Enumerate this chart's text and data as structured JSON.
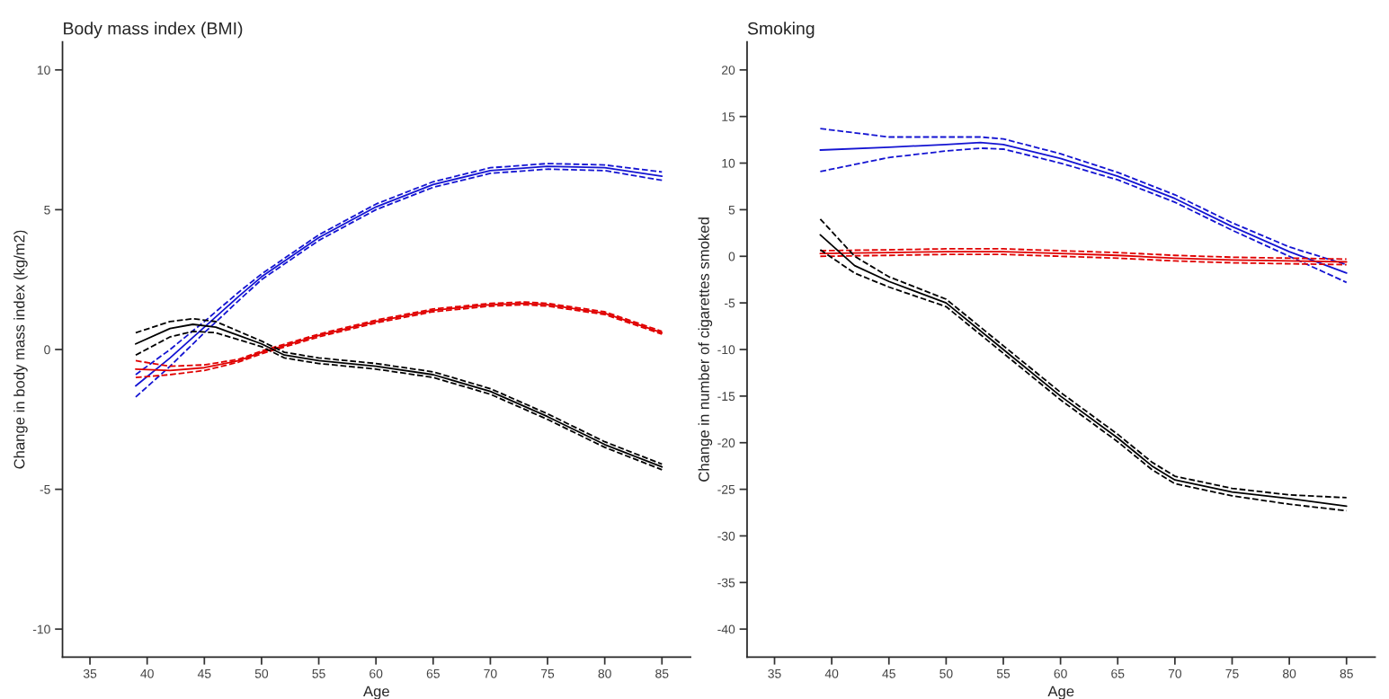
{
  "chart_data": [
    {
      "type": "line",
      "title": "Body mass index (BMI)",
      "xlabel": "Age",
      "ylabel": "Change in body mass index (kg/m2)",
      "xlim": [
        32.6,
        87.5
      ],
      "ylim": [
        -11,
        11
      ],
      "xticks": [
        35,
        40,
        45,
        50,
        55,
        60,
        65,
        70,
        75,
        80,
        85
      ],
      "yticks": [
        -10,
        -5,
        0,
        5,
        10
      ],
      "grid": false,
      "line_style": "solid",
      "marker": "none",
      "series": [
        {
          "color": "#1414d2",
          "x": [
            39,
            42,
            45,
            48,
            50,
            55,
            60,
            65,
            70,
            75,
            80,
            85
          ],
          "values": [
            -1.3,
            -0.3,
            0.8,
            1.9,
            2.6,
            4.0,
            5.1,
            5.9,
            6.4,
            6.55,
            6.5,
            6.2
          ]
        },
        {
          "color": "#1414d2",
          "line_style": "dashed",
          "x": [
            39,
            42,
            45,
            48,
            50,
            55,
            60,
            65,
            70,
            75,
            80,
            85
          ],
          "values": [
            -1.7,
            -0.6,
            0.6,
            1.75,
            2.5,
            3.9,
            5.0,
            5.8,
            6.3,
            6.45,
            6.4,
            6.05
          ]
        },
        {
          "color": "#1414d2",
          "line_style": "dashed",
          "x": [
            39,
            42,
            45,
            48,
            50,
            55,
            60,
            65,
            70,
            75,
            80,
            85
          ],
          "values": [
            -0.9,
            0.0,
            1.0,
            2.05,
            2.7,
            4.1,
            5.2,
            6.0,
            6.5,
            6.65,
            6.6,
            6.35
          ]
        },
        {
          "color": "#e00000",
          "x": [
            39,
            42,
            45,
            48,
            50,
            55,
            60,
            65,
            70,
            73,
            75,
            80,
            85
          ],
          "values": [
            -0.7,
            -0.75,
            -0.65,
            -0.4,
            -0.1,
            0.5,
            1.0,
            1.4,
            1.6,
            1.65,
            1.6,
            1.3,
            0.6
          ]
        },
        {
          "color": "#e00000",
          "line_style": "dashed",
          "x": [
            39,
            42,
            45,
            48,
            50,
            55,
            60,
            65,
            70,
            73,
            75,
            80,
            85
          ],
          "values": [
            -1.0,
            -0.9,
            -0.75,
            -0.45,
            -0.15,
            0.45,
            0.95,
            1.35,
            1.55,
            1.6,
            1.55,
            1.25,
            0.55
          ]
        },
        {
          "color": "#e00000",
          "line_style": "dashed",
          "x": [
            39,
            42,
            45,
            48,
            50,
            55,
            60,
            65,
            70,
            73,
            75,
            80,
            85
          ],
          "values": [
            -0.4,
            -0.6,
            -0.55,
            -0.35,
            -0.05,
            0.55,
            1.05,
            1.45,
            1.65,
            1.7,
            1.65,
            1.35,
            0.65
          ]
        },
        {
          "color": "#000000",
          "x": [
            39,
            42,
            44,
            46,
            48,
            50,
            52,
            55,
            60,
            65,
            70,
            75,
            80,
            85
          ],
          "values": [
            0.2,
            0.75,
            0.9,
            0.8,
            0.5,
            0.2,
            -0.2,
            -0.4,
            -0.6,
            -0.9,
            -1.5,
            -2.4,
            -3.4,
            -4.2
          ]
        },
        {
          "color": "#000000",
          "line_style": "dashed",
          "x": [
            39,
            42,
            44,
            46,
            48,
            50,
            52,
            55,
            60,
            65,
            70,
            75,
            80,
            85
          ],
          "values": [
            -0.2,
            0.45,
            0.65,
            0.6,
            0.35,
            0.1,
            -0.3,
            -0.5,
            -0.7,
            -1.0,
            -1.6,
            -2.5,
            -3.5,
            -4.3
          ]
        },
        {
          "color": "#000000",
          "line_style": "dashed",
          "x": [
            39,
            42,
            44,
            46,
            48,
            50,
            52,
            55,
            60,
            65,
            70,
            75,
            80,
            85
          ],
          "values": [
            0.6,
            1.0,
            1.1,
            1.0,
            0.65,
            0.3,
            -0.1,
            -0.3,
            -0.5,
            -0.8,
            -1.4,
            -2.3,
            -3.3,
            -4.1
          ]
        }
      ]
    },
    {
      "type": "line",
      "title": "Smoking",
      "xlabel": "Age",
      "ylabel": "Change in number of cigarettes smoked",
      "xlim": [
        32.6,
        87.5
      ],
      "ylim": [
        -43,
        23
      ],
      "xticks": [
        35,
        40,
        45,
        50,
        55,
        60,
        65,
        70,
        75,
        80,
        85
      ],
      "yticks": [
        -40,
        -35,
        -30,
        -25,
        -20,
        -15,
        -10,
        -5,
        0,
        5,
        10,
        15,
        20
      ],
      "grid": false,
      "line_style": "solid",
      "marker": "none",
      "series": [
        {
          "color": "#1414d2",
          "x": [
            39,
            45,
            50,
            53,
            55,
            60,
            65,
            70,
            75,
            80,
            85
          ],
          "values": [
            11.4,
            11.7,
            12.0,
            12.2,
            12.0,
            10.5,
            8.6,
            6.2,
            3.2,
            0.5,
            -1.8
          ]
        },
        {
          "color": "#1414d2",
          "line_style": "dashed",
          "x": [
            39,
            45,
            50,
            53,
            55,
            60,
            65,
            70,
            75,
            80,
            85
          ],
          "values": [
            9.1,
            10.6,
            11.3,
            11.6,
            11.5,
            10.0,
            8.2,
            5.8,
            2.8,
            0.0,
            -2.8
          ]
        },
        {
          "color": "#1414d2",
          "line_style": "dashed",
          "x": [
            39,
            45,
            50,
            53,
            55,
            60,
            65,
            70,
            75,
            80,
            85
          ],
          "values": [
            13.7,
            12.8,
            12.8,
            12.8,
            12.6,
            11.0,
            9.0,
            6.6,
            3.6,
            1.0,
            -0.9
          ]
        },
        {
          "color": "#e00000",
          "x": [
            39,
            45,
            50,
            55,
            60,
            65,
            70,
            75,
            80,
            85
          ],
          "values": [
            0.3,
            0.4,
            0.5,
            0.5,
            0.3,
            0.1,
            -0.2,
            -0.4,
            -0.5,
            -0.6
          ]
        },
        {
          "color": "#e00000",
          "line_style": "dashed",
          "x": [
            39,
            45,
            50,
            55,
            60,
            65,
            70,
            75,
            80,
            85
          ],
          "values": [
            0.0,
            0.1,
            0.2,
            0.2,
            0.0,
            -0.2,
            -0.5,
            -0.7,
            -0.8,
            -0.9
          ]
        },
        {
          "color": "#e00000",
          "line_style": "dashed",
          "x": [
            39,
            45,
            50,
            55,
            60,
            65,
            70,
            75,
            80,
            85
          ],
          "values": [
            0.6,
            0.7,
            0.8,
            0.8,
            0.6,
            0.4,
            0.1,
            -0.1,
            -0.2,
            -0.3
          ]
        },
        {
          "color": "#000000",
          "x": [
            39,
            42,
            45,
            50,
            55,
            60,
            65,
            68,
            70,
            75,
            80,
            85
          ],
          "values": [
            2.3,
            -1.0,
            -2.7,
            -5.0,
            -10.0,
            -15.0,
            -19.5,
            -22.5,
            -24.0,
            -25.3,
            -26.0,
            -26.8
          ]
        },
        {
          "color": "#000000",
          "line_style": "dashed",
          "x": [
            39,
            42,
            45,
            50,
            55,
            60,
            65,
            68,
            70,
            75,
            80,
            85
          ],
          "values": [
            0.7,
            -1.8,
            -3.3,
            -5.4,
            -10.4,
            -15.4,
            -19.9,
            -22.9,
            -24.4,
            -25.7,
            -26.6,
            -27.3
          ]
        },
        {
          "color": "#000000",
          "line_style": "dashed",
          "x": [
            39,
            42,
            45,
            50,
            55,
            60,
            65,
            68,
            70,
            75,
            80,
            85
          ],
          "values": [
            4.0,
            0.0,
            -2.2,
            -4.6,
            -9.6,
            -14.6,
            -19.1,
            -22.1,
            -23.6,
            -24.9,
            -25.6,
            -25.9
          ]
        }
      ]
    }
  ]
}
